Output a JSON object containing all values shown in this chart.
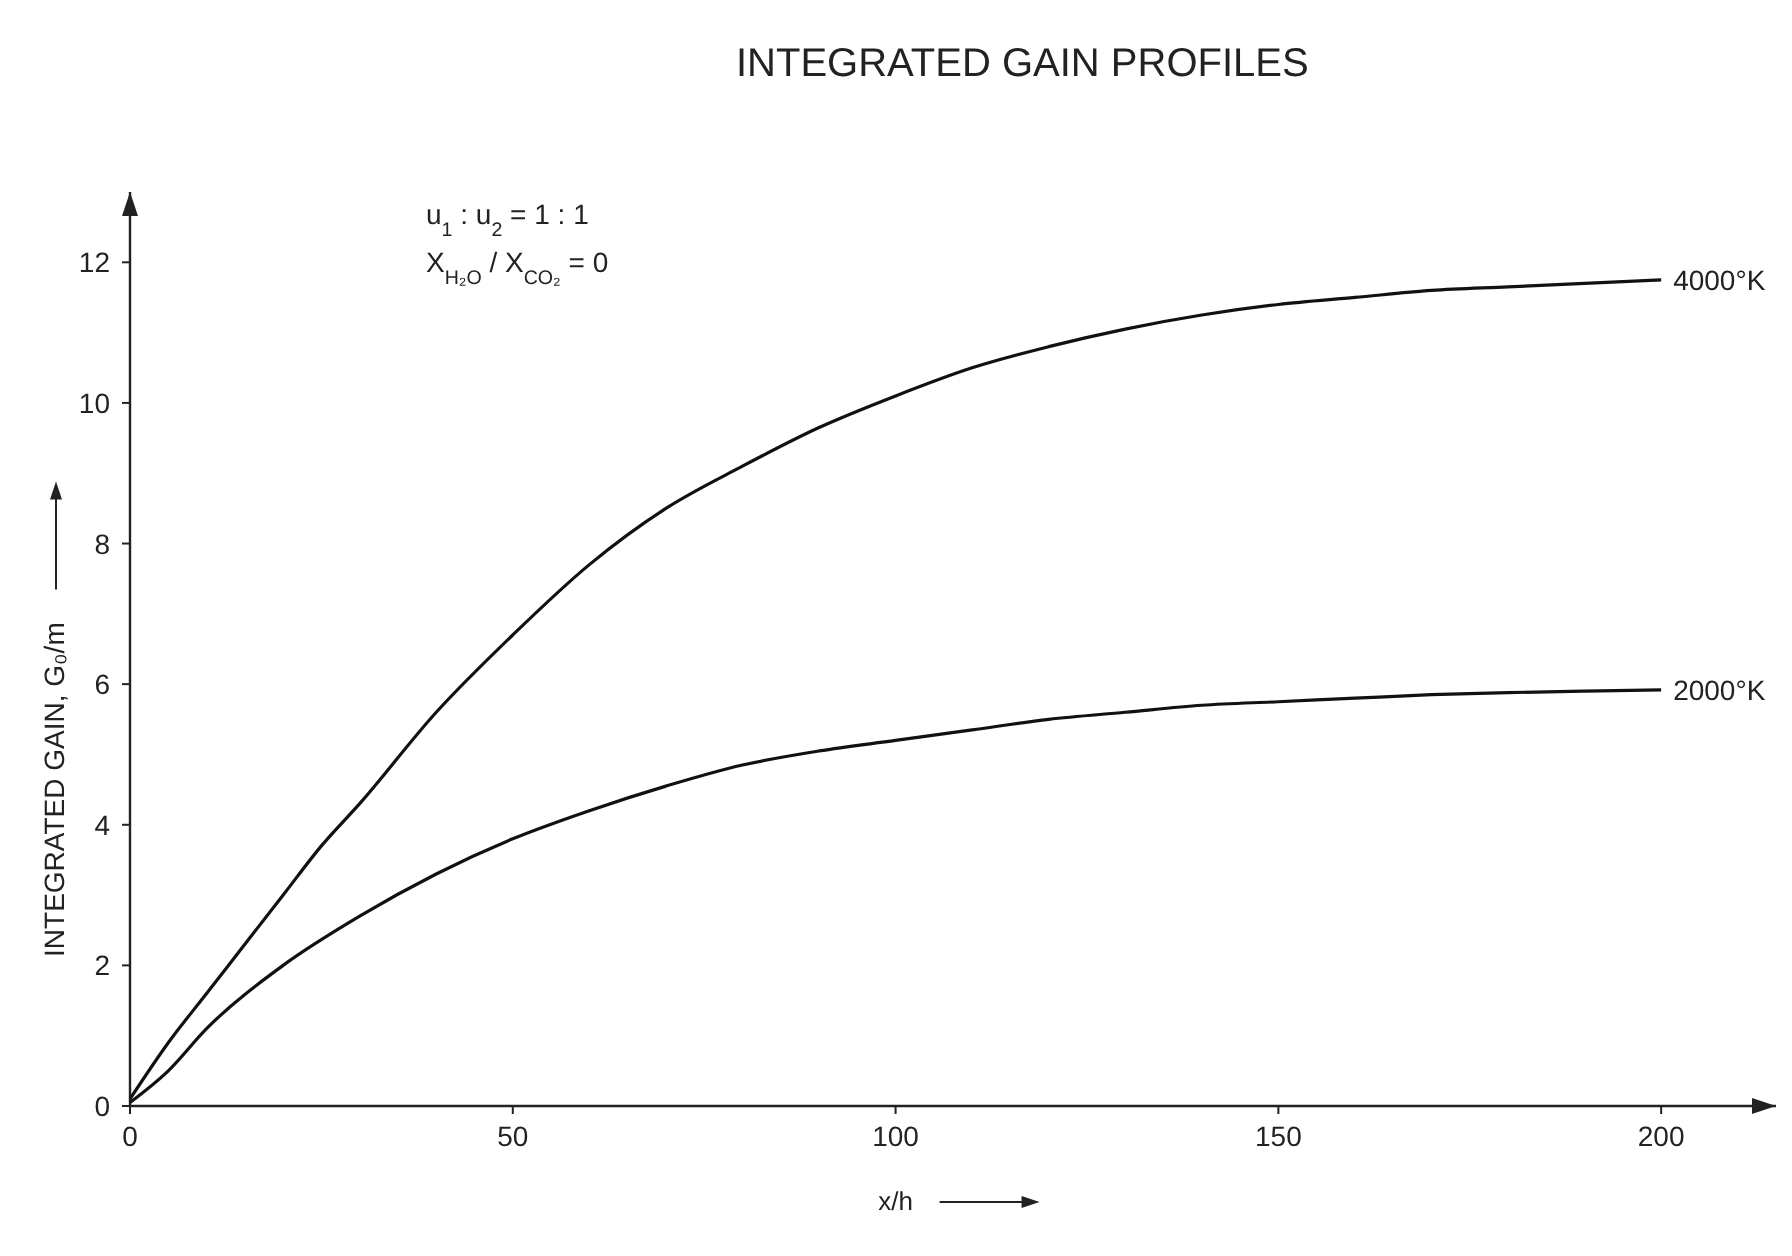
{
  "chart_data": {
    "type": "line",
    "title": "INTEGRATED GAIN PROFILES",
    "xlabel": "x/h",
    "ylabel": "INTEGRATED GAIN, G₀/m",
    "annotations": [
      "u$_{1}$ : u$_{2}$ = 1 : 1",
      "X$_{H₂O}$ / X$_{CO₂}$ = 0"
    ],
    "xlim": [
      0,
      215
    ],
    "xticks": [
      0,
      50,
      100,
      150,
      200
    ],
    "ylim": [
      0,
      13
    ],
    "yticks": [
      0,
      2,
      4,
      6,
      8,
      10,
      12
    ],
    "grid": false,
    "marker": "none",
    "line_style": "solid",
    "series": [
      {
        "name": "4000°K",
        "color": "#111111",
        "x": [
          0,
          5,
          10,
          15,
          20,
          25,
          30,
          40,
          50,
          60,
          70,
          80,
          90,
          100,
          110,
          120,
          130,
          140,
          150,
          160,
          170,
          180,
          190,
          200
        ],
        "values": [
          0.1,
          0.9,
          1.6,
          2.3,
          3.0,
          3.7,
          4.3,
          5.6,
          6.7,
          7.7,
          8.5,
          9.1,
          9.65,
          10.1,
          10.5,
          10.8,
          11.05,
          11.25,
          11.4,
          11.5,
          11.6,
          11.65,
          11.7,
          11.75
        ]
      },
      {
        "name": "2000°K",
        "color": "#111111",
        "x": [
          0,
          5,
          10,
          20,
          30,
          40,
          50,
          60,
          70,
          80,
          90,
          100,
          110,
          120,
          130,
          140,
          150,
          160,
          170,
          180,
          190,
          200
        ],
        "values": [
          0.05,
          0.5,
          1.1,
          2.0,
          2.7,
          3.3,
          3.8,
          4.2,
          4.55,
          4.85,
          5.05,
          5.2,
          5.35,
          5.5,
          5.6,
          5.7,
          5.75,
          5.8,
          5.85,
          5.88,
          5.9,
          5.92
        ]
      }
    ]
  }
}
